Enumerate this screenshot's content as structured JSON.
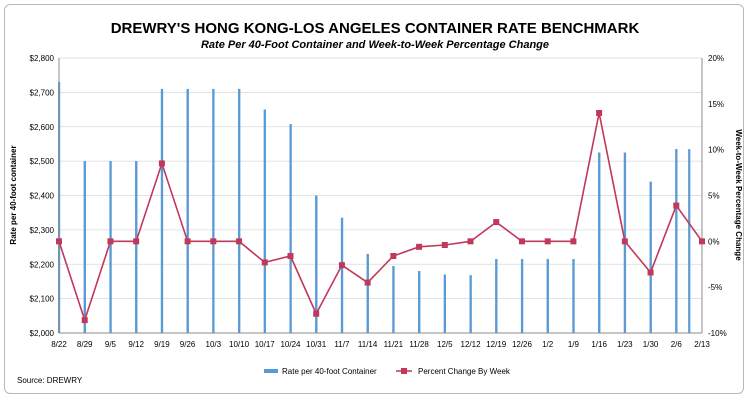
{
  "chart_data": {
    "type": "bar+line",
    "title": "DREWRY'S HONG KONG-LOS ANGELES CONTAINER RATE BENCHMARK",
    "subtitle": "Rate Per 40-Foot Container and Week-to-Week Percentage Change",
    "source": "Source: DREWRY",
    "ylabel_left": "Rate per 40-foot container",
    "ylabel_right": "Week-to-Week Percentage Change",
    "ylim_left": [
      2000,
      2800
    ],
    "ylim_right": [
      -10,
      20
    ],
    "yticks_left": [
      "$2,000",
      "$2,100",
      "$2,200",
      "$2,300",
      "$2,400",
      "$2,500",
      "$2,600",
      "$2,700",
      "$2,800"
    ],
    "yticks_right": [
      "-10%",
      "-5%",
      "0%",
      "5%",
      "10%",
      "15%",
      "20%"
    ],
    "x_labels": [
      "8/22",
      "8/29",
      "9/5",
      "9/12",
      "9/19",
      "9/26",
      "10/3",
      "10/10",
      "10/17",
      "10/24",
      "10/31",
      "11/7",
      "11/14",
      "11/21",
      "11/28",
      "12/5",
      "12/12",
      "12/19",
      "12/26",
      "1/2",
      "1/9",
      "1/16",
      "1/23",
      "1/30",
      "2/6",
      "2/13"
    ],
    "legend_position": "bottom",
    "series": [
      {
        "name": "Rate per 40-foot Container",
        "kind": "bar",
        "color": "#5b9bd5",
        "x": [
          "8/22",
          "8/29",
          "8/29",
          "9/5",
          "9/5",
          "9/12",
          "9/12",
          "9/19",
          "9/19",
          "9/26",
          "9/26",
          "10/3",
          "10/3",
          "10/10",
          "10/10",
          "10/17",
          "10/17",
          "10/24",
          "10/24",
          "10/31",
          "10/31",
          "11/7",
          "11/7",
          "11/14",
          "11/14",
          "11/21",
          "11/21",
          "11/28",
          "11/28",
          "12/5",
          "12/5",
          "12/12",
          "12/12",
          "12/19",
          "12/19",
          "12/26",
          "12/26",
          "1/2",
          "1/2",
          "1/9",
          "1/9",
          "1/16",
          "1/16",
          "1/23",
          "1/23",
          "1/30",
          "1/30",
          "2/6",
          "2/6",
          "2/13"
        ],
        "values": [
          2730,
          2500,
          2500,
          2500,
          2500,
          2500,
          2500,
          2710,
          2710,
          2710,
          2710,
          2710,
          2710,
          2710,
          2710,
          2650,
          2650,
          2608,
          2608,
          2400,
          2400,
          2335,
          2335,
          2230,
          2230,
          2195,
          2195,
          2180,
          2180,
          2170,
          2170,
          2168,
          2168,
          2215,
          2215,
          2215,
          2215,
          2215,
          2215,
          2215,
          2215,
          2525,
          2525,
          2525,
          2525,
          2440,
          2440,
          2535,
          2535,
          2535
        ]
      },
      {
        "name": "Percent Change By Week",
        "kind": "line",
        "color": "#c0395a",
        "x": [
          "8/22",
          "8/29",
          "9/5",
          "9/12",
          "9/19",
          "9/26",
          "10/3",
          "10/10",
          "10/17",
          "10/24",
          "10/31",
          "11/7",
          "11/14",
          "11/21",
          "11/28",
          "12/5",
          "12/12",
          "12/19",
          "12/26",
          "1/2",
          "1/9",
          "1/16",
          "1/23",
          "1/30",
          "2/6",
          "2/13"
        ],
        "values": [
          0,
          -8.6,
          0,
          0,
          8.5,
          0,
          0,
          0,
          -2.3,
          -1.6,
          -7.9,
          -2.6,
          -4.5,
          -1.6,
          -0.6,
          -0.4,
          0,
          2.1,
          0,
          0,
          0,
          14.0,
          0,
          -3.4,
          3.9,
          0
        ]
      }
    ]
  }
}
